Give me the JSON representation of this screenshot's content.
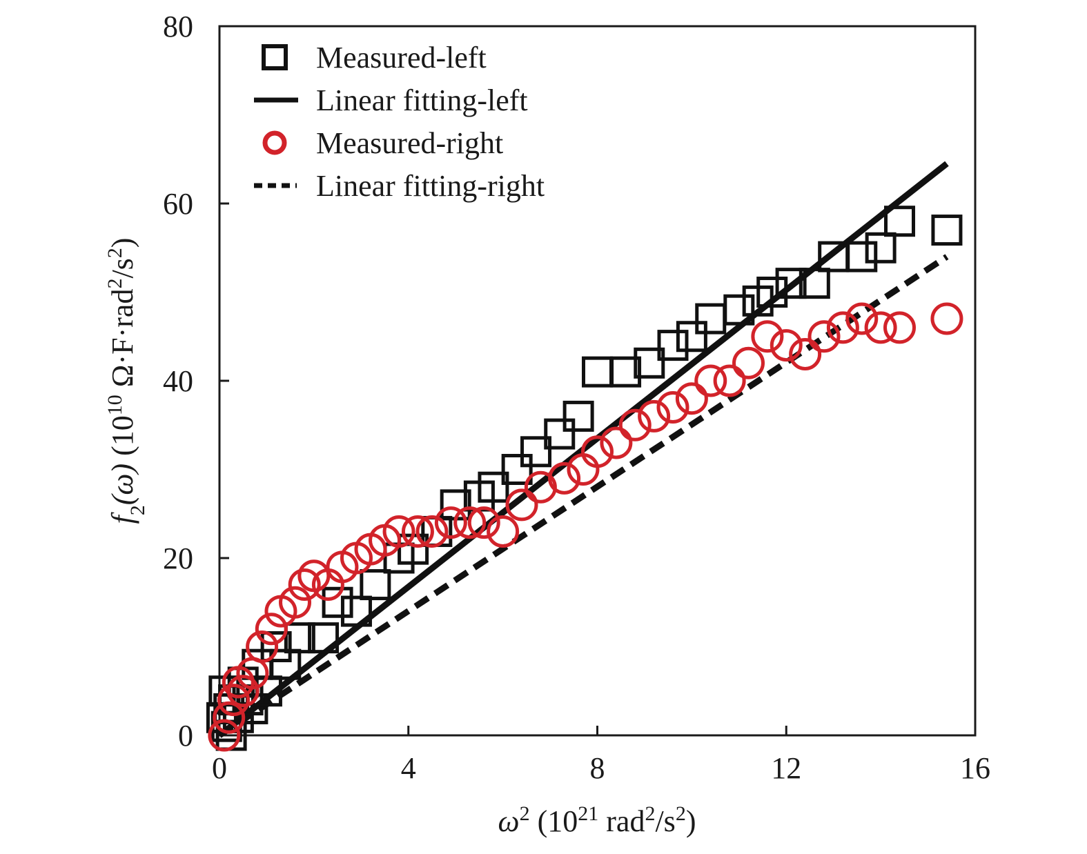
{
  "chart_data": {
    "type": "scatter",
    "xlabel": {
      "var": "ω",
      "var_sup": "2",
      "open": " (10",
      "exp": "21",
      "unit": " rad",
      "unit_sup": "2",
      "unit_mid": "/s",
      "unit_sup2": "2",
      "close": ")"
    },
    "ylabel": {
      "func": "f",
      "func_sub": "2",
      "arg": "(ω)",
      "open": " (10",
      "exp": "10",
      "unit": " Ω·F·rad",
      "unit_sup": "2",
      "unit_mid": "/s",
      "unit_sup2": "2",
      "close": ")"
    },
    "xlim": [
      0,
      16
    ],
    "ylim": [
      0,
      80
    ],
    "xticks": [
      0,
      4,
      8,
      12,
      16
    ],
    "xtick_labels": [
      "0",
      "4",
      "8",
      "12",
      "16"
    ],
    "yticks": [
      0,
      20,
      40,
      60,
      80
    ],
    "ytick_labels": [
      "0",
      "20",
      "40",
      "60",
      "80"
    ],
    "grid": false,
    "legend_position": "top-left",
    "series": [
      {
        "name": "Measured-left",
        "kind": "marker",
        "marker": "square",
        "color": "#111111",
        "x": [
          0.05,
          0.1,
          0.15,
          0.2,
          0.25,
          0.3,
          0.4,
          0.5,
          0.6,
          0.7,
          0.8,
          1.0,
          1.2,
          1.4,
          1.7,
          2.2,
          2.5,
          2.9,
          3.3,
          3.8,
          4.1,
          4.6,
          5.0,
          5.5,
          5.8,
          6.3,
          6.7,
          7.2,
          7.6,
          8.0,
          8.6,
          9.1,
          9.6,
          10.0,
          10.4,
          11.0,
          11.4,
          11.7,
          12.1,
          12.6,
          13.0,
          13.6,
          14.0,
          14.4,
          15.4
        ],
        "y": [
          2,
          5,
          1,
          3,
          0,
          4,
          2,
          6,
          4,
          3,
          8,
          5,
          10,
          8,
          11,
          11,
          15,
          14,
          17,
          20,
          21,
          23,
          26,
          27,
          28,
          30,
          32,
          34,
          36,
          41,
          41,
          42,
          44,
          45,
          47,
          48,
          49,
          50,
          51,
          51,
          54,
          54,
          55,
          58,
          57
        ]
      },
      {
        "name": "Linear fitting-left",
        "kind": "line",
        "dash": "solid",
        "color": "#111111",
        "x": [
          0.0,
          15.4
        ],
        "y": [
          0.0,
          64.5
        ]
      },
      {
        "name": "Measured-right",
        "kind": "marker",
        "marker": "circle",
        "color": "#d2232a",
        "x": [
          0.1,
          0.2,
          0.3,
          0.4,
          0.5,
          0.7,
          0.9,
          1.1,
          1.3,
          1.6,
          1.8,
          2.0,
          2.3,
          2.6,
          2.9,
          3.2,
          3.5,
          3.8,
          4.2,
          4.5,
          4.9,
          5.3,
          5.6,
          6.0,
          6.4,
          6.8,
          7.3,
          7.7,
          8.0,
          8.4,
          8.8,
          9.2,
          9.6,
          10.0,
          10.4,
          10.8,
          11.2,
          11.6,
          12.0,
          12.4,
          12.8,
          13.2,
          13.6,
          14.0,
          14.4,
          15.4
        ],
        "y": [
          0,
          2,
          4,
          6,
          5,
          7,
          10,
          12,
          14,
          15,
          17,
          18,
          17,
          19,
          20,
          21,
          22,
          23,
          23,
          23,
          24,
          24,
          24,
          23,
          26,
          28,
          29,
          30,
          32,
          33,
          35,
          36,
          37,
          38,
          40,
          40,
          42,
          45,
          44,
          43,
          45,
          46,
          47,
          46,
          46,
          47
        ]
      },
      {
        "name": "Linear fitting-right",
        "kind": "line",
        "dash": "dashed",
        "color": "#111111",
        "x": [
          0.0,
          15.4
        ],
        "y": [
          0.0,
          54.0
        ]
      }
    ]
  }
}
